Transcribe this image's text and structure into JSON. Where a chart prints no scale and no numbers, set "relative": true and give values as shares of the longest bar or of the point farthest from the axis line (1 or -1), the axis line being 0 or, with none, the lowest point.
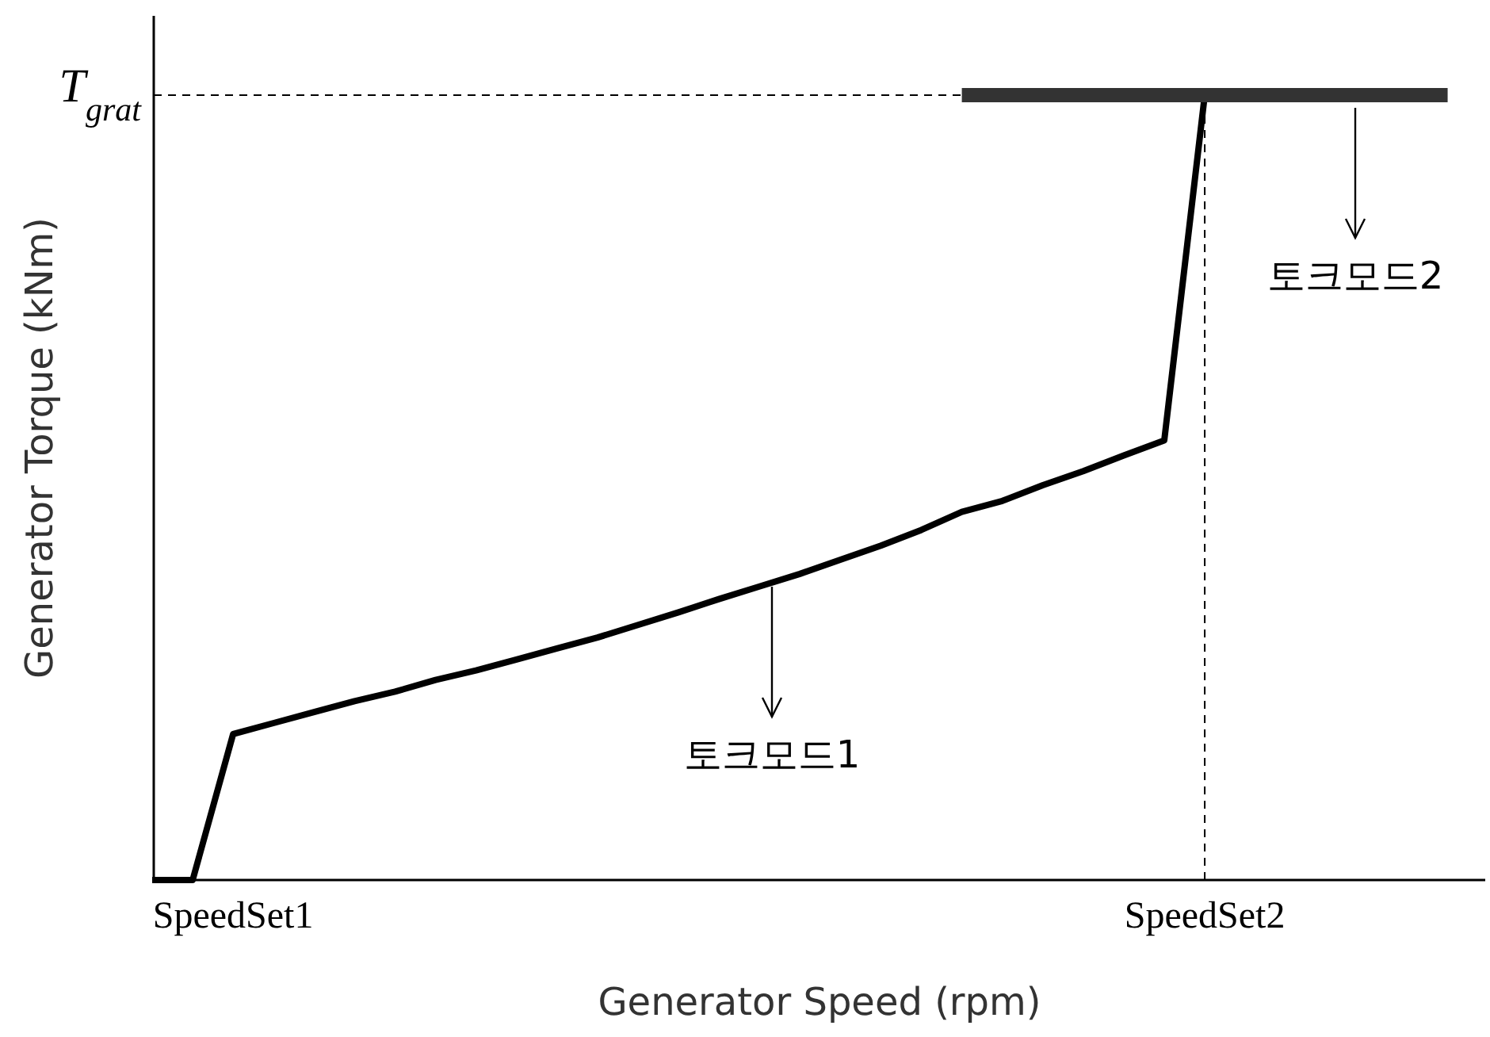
{
  "chart_data": {
    "type": "line",
    "relative": true,
    "xlabel": "Generator Speed (rpm)",
    "ylabel": "Generator Torque (kNm)",
    "grid": false,
    "marker": "none",
    "line_style": "solid",
    "categories": [
      null,
      null,
      "SpeedSet1",
      null,
      null,
      null,
      null,
      null,
      null,
      null,
      null,
      null,
      null,
      null,
      null,
      null,
      null,
      null,
      null,
      null,
      null,
      null,
      null,
      null,
      null,
      null,
      "SpeedSet2",
      null,
      null,
      null,
      null,
      null,
      null
    ],
    "series": [
      {
        "color": "#000000",
        "values": [
          0,
          0,
          0.186,
          0.2,
          0.214,
          0.228,
          0.24,
          0.255,
          0.267,
          0.281,
          0.295,
          0.309,
          0.325,
          0.341,
          0.358,
          0.374,
          0.39,
          0.408,
          0.426,
          0.446,
          0.469,
          0.483,
          0.503,
          0.521,
          0.541,
          0.56,
          1,
          null,
          null,
          null,
          null,
          null,
          null
        ]
      },
      {
        "color": "#333333",
        "values": [
          null,
          null,
          null,
          null,
          null,
          null,
          null,
          null,
          null,
          null,
          null,
          null,
          null,
          null,
          null,
          null,
          null,
          null,
          null,
          null,
          1,
          1,
          1,
          1,
          1,
          1,
          1,
          1,
          1,
          1,
          1,
          1,
          1
        ]
      }
    ],
    "ref_lines": [
      {
        "axis": "y",
        "value": 1,
        "label": "T$_{grat}$",
        "line_style": "dashed",
        "color": "#000000"
      },
      {
        "axis": "x",
        "value": "SpeedSet2",
        "line_style": "dashed",
        "color": "#000000"
      }
    ],
    "annotations": [
      "토크모드1",
      "토크모드2"
    ]
  }
}
